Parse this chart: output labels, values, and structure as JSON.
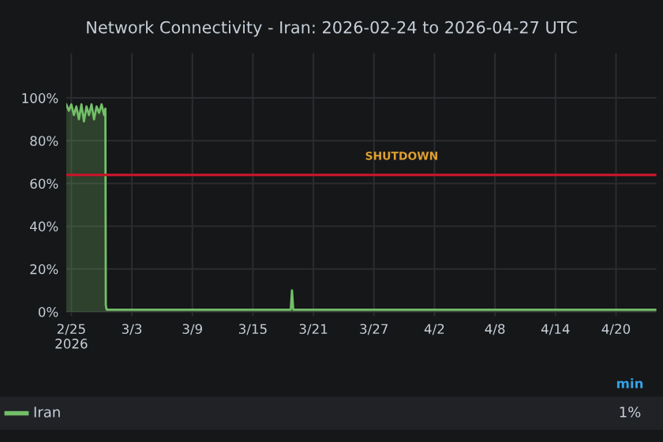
{
  "chart_data": {
    "type": "area",
    "title": "Network Connectivity - Iran: 2026-02-24 to 2026-04-27 UTC",
    "x": [
      "2026-02-24T12:00",
      "2026-02-24T18:00",
      "2026-02-25T00:00",
      "2026-02-25T06:00",
      "2026-02-25T12:00",
      "2026-02-25T18:00",
      "2026-02-26T00:00",
      "2026-02-26T06:00",
      "2026-02-26T12:00",
      "2026-02-26T18:00",
      "2026-02-27T00:00",
      "2026-02-27T06:00",
      "2026-02-27T12:00",
      "2026-02-27T18:00",
      "2026-02-28T00:00",
      "2026-02-28T06:00",
      "2026-02-28T09:00",
      "2026-02-28T10:00",
      "2026-02-28T12:00",
      "2026-03-05T00:00",
      "2026-03-10T00:00",
      "2026-03-15T00:00",
      "2026-03-18T18:00",
      "2026-03-18T21:00",
      "2026-03-19T00:00",
      "2026-03-25T00:00",
      "2026-04-05T00:00",
      "2026-04-15T00:00",
      "2026-04-24T00:00"
    ],
    "series": [
      {
        "name": "Iran",
        "color": "#73bf69",
        "values": [
          97,
          94,
          97,
          92,
          96,
          90,
          97,
          89,
          96,
          92,
          97,
          90,
          96,
          93,
          97,
          92,
          95,
          3,
          1,
          1,
          1,
          1,
          1,
          10,
          1,
          1,
          1,
          1,
          1
        ]
      }
    ],
    "xlim": [
      "2026-02-24T12:00",
      "2026-04-24T00:00"
    ],
    "xticks": [
      {
        "value": "2026-02-25",
        "label": "2/25\n2026"
      },
      {
        "value": "2026-03-03",
        "label": "3/3"
      },
      {
        "value": "2026-03-09",
        "label": "3/9"
      },
      {
        "value": "2026-03-15",
        "label": "3/15"
      },
      {
        "value": "2026-03-21",
        "label": "3/21"
      },
      {
        "value": "2026-03-27",
        "label": "3/27"
      },
      {
        "value": "2026-04-02",
        "label": "4/2"
      },
      {
        "value": "2026-04-08",
        "label": "4/8"
      },
      {
        "value": "2026-04-14",
        "label": "4/14"
      },
      {
        "value": "2026-04-20",
        "label": "4/20"
      }
    ],
    "ylim": [
      -2,
      121
    ],
    "yticks": [
      {
        "value": 0,
        "label": "0%"
      },
      {
        "value": 20,
        "label": "20%"
      },
      {
        "value": 40,
        "label": "40%"
      },
      {
        "value": 60,
        "label": "60%"
      },
      {
        "value": 80,
        "label": "80%"
      },
      {
        "value": 100,
        "label": "100%"
      }
    ],
    "ref_lines": [
      {
        "axis": "y",
        "value": 64,
        "label": "SHUTDOWN",
        "color": "#c4162a"
      }
    ],
    "annotations": [
      "min",
      "1%"
    ],
    "grid": true,
    "legend": "bottom"
  }
}
